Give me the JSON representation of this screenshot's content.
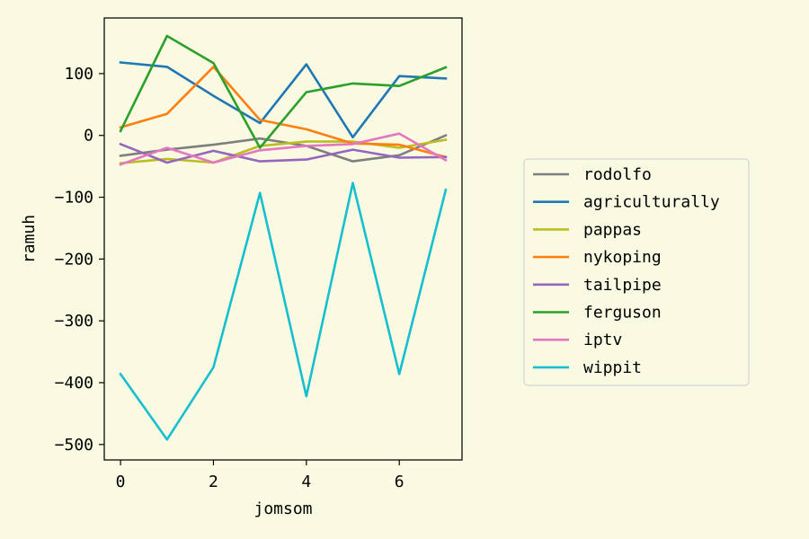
{
  "chart_data": {
    "type": "line",
    "xlabel": "jomsom",
    "ylabel": "ramuh",
    "x": [
      0,
      1,
      2,
      3,
      4,
      5,
      6,
      7
    ],
    "xlim": [
      -0.35,
      7.35
    ],
    "ylim": [
      -525,
      190
    ],
    "xticks": [
      0,
      2,
      4,
      6
    ],
    "yticks": [
      100,
      0,
      -100,
      -200,
      -300,
      -400,
      -500
    ],
    "grid": false,
    "legend_position": "right",
    "background": "#fafae2",
    "series": [
      {
        "name": "rodolfo",
        "color": "#7f7f7f",
        "values": [
          -33,
          -23,
          -15,
          -5,
          -17,
          -42,
          -32,
          0
        ]
      },
      {
        "name": "agriculturally",
        "color": "#1f77b4",
        "values": [
          118,
          111,
          64,
          20,
          115,
          -3,
          96,
          92
        ]
      },
      {
        "name": "pappas",
        "color": "#bcbd22",
        "values": [
          -45,
          -38,
          -44,
          -17,
          -10,
          -10,
          -20,
          -7
        ]
      },
      {
        "name": "nykoping",
        "color": "#ff7f0e",
        "values": [
          13,
          35,
          111,
          25,
          10,
          -13,
          -15,
          -35
        ]
      },
      {
        "name": "tailpipe",
        "color": "#9467bd",
        "values": [
          -14,
          -44,
          -25,
          -42,
          -39,
          -23,
          -36,
          -35
        ]
      },
      {
        "name": "ferguson",
        "color": "#2ca02c",
        "values": [
          7,
          161,
          117,
          -20,
          70,
          84,
          80,
          110
        ]
      },
      {
        "name": "iptv",
        "color": "#e377c2",
        "values": [
          -47,
          -20,
          -44,
          -24,
          -17,
          -14,
          3,
          -40
        ]
      },
      {
        "name": "wippit",
        "color": "#17becf",
        "values": [
          -386,
          -492,
          -375,
          -93,
          -422,
          -77,
          -386,
          -88
        ]
      }
    ]
  }
}
